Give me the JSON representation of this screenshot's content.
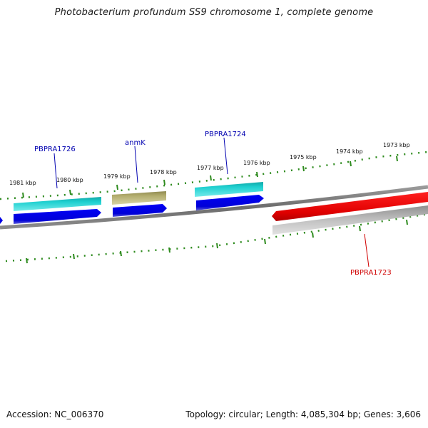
{
  "title": "Photobacterium profundum SS9 chromosome 1, complete genome",
  "footer": {
    "accession": "Accession: NC_006370",
    "summary": "Topology: circular; Length: 4,085,304 bp; Genes: 3,606"
  },
  "colors": {
    "tick": "#2e8b1e",
    "backbone": "#7a7a7a",
    "cds": "#0000e6",
    "gene_cyan": "#1fd0d0",
    "gene_olive": "#b3ad6e",
    "highlight_red": "#e00000",
    "highlight_gray": "#b5b5b5",
    "label_blue": "#0000b0",
    "label_red": "#d00000"
  },
  "scale_labels": [
    "1981 kbp",
    "1980 kbp",
    "1979 kbp",
    "1978 kbp",
    "1977 kbp",
    "1976 kbp",
    "1975 kbp",
    "1974 kbp",
    "1973 kbp"
  ],
  "gene_labels": {
    "PBPRA1726": "PBPRA1726",
    "anmK": "anmK",
    "PBPRA1724": "PBPRA1724",
    "PBPRA1723": "PBPRA1723"
  }
}
